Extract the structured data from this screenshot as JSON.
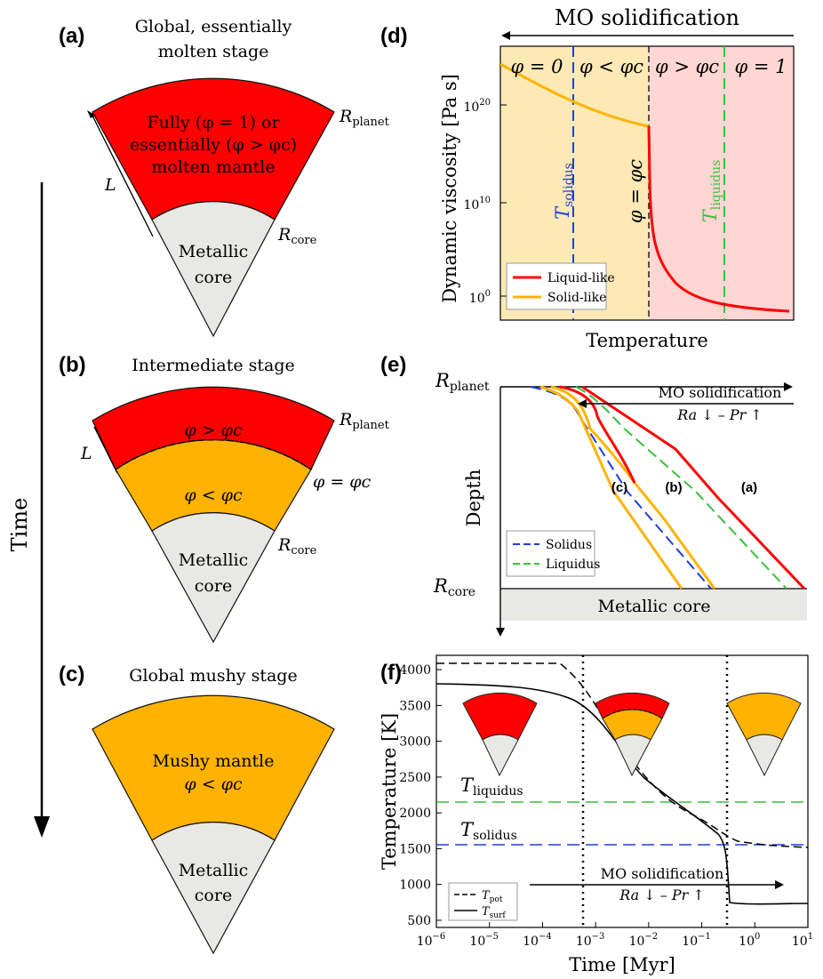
{
  "colors": {
    "molten": "#ff0000",
    "mushy": "#ffb300",
    "core": "#e8e8e4",
    "solid_bg": "#fde9b4",
    "liquid_bg": "#ffd6d3",
    "solidus": "#1f3fd8",
    "liquidus": "#3cbf3c",
    "liquid_like": "#ff0000",
    "solid_like": "#ffb300"
  },
  "panels": {
    "a": {
      "tag": "(a)",
      "title_line1": "Global, essentially",
      "title_line2": "molten stage",
      "mantle_line1": "Fully (φ = 1) or",
      "mantle_line2": "essentially (φ > φc)",
      "mantle_line3": "molten mantle",
      "core_line1": "Metallic",
      "core_line2": "core",
      "r_planet": "R",
      "r_planet_sub": "planet",
      "r_core": "R",
      "r_core_sub": "core",
      "length": "L"
    },
    "b": {
      "tag": "(b)",
      "title": "Intermediate stage",
      "upper": "φ > φc",
      "lower": "φ < φc",
      "boundary": "φ = φc",
      "core_line1": "Metallic",
      "core_line2": "core",
      "r_planet": "R",
      "r_planet_sub": "planet",
      "r_core": "R",
      "r_core_sub": "core",
      "length": "L"
    },
    "c": {
      "tag": "(c)",
      "title": "Global mushy stage",
      "mantle_line1": "Mushy mantle",
      "mantle_line2": "φ < φc",
      "core_line1": "Metallic",
      "core_line2": "core"
    },
    "time_label": "Time",
    "d": {
      "tag": "(d)",
      "header": "MO solidification",
      "regions": [
        "φ = 0",
        "φ < φc",
        "φ > φc",
        "φ = 1"
      ],
      "ylabel": "Dynamic viscosity [Pa s]",
      "xlabel": "Temperature",
      "yticks": [
        "10",
        "10",
        "10"
      ],
      "ytick_exp": [
        "20",
        "10",
        "0"
      ],
      "t_solidus": "T",
      "t_solidus_sub": "solidus",
      "t_liquidus": "T",
      "t_liquidus_sub": "liquidus",
      "phi_c_label": "φ = φc",
      "legend": [
        "Liquid-like",
        "Solid-like"
      ]
    },
    "e": {
      "tag": "(e)",
      "r_planet": "R",
      "r_planet_sub": "planet",
      "r_core": "R",
      "r_core_sub": "core",
      "ylabel": "Depth",
      "core_label": "Metallic core",
      "arrow_label1": "MO solidification",
      "arrow_label2": "Ra ↓ – Pr ↑",
      "curve_labels": [
        "(c)",
        "(b)",
        "(a)"
      ],
      "legend": [
        "Solidus",
        "Liquidus"
      ]
    },
    "f": {
      "tag": "(f)",
      "ylabel": "Temperature [K]",
      "xlabel": "Time [Myr]",
      "yticks": [
        "4000",
        "3500",
        "3000",
        "2500",
        "2000",
        "1500",
        "1000",
        "500"
      ],
      "xtick_exp": [
        "−6",
        "−5",
        "−4",
        "−3",
        "−2",
        "−1",
        "0",
        "1"
      ],
      "t_liquidus": "T",
      "t_liquidus_sub": "liquidus",
      "t_solidus": "T",
      "t_solidus_sub": "solidus",
      "arrow_label1": "MO solidification",
      "arrow_label2": "Ra ↓ – Pr ↑",
      "legend": [
        "T",
        "T"
      ],
      "legend_sub": [
        "pot",
        "surf"
      ]
    }
  }
}
